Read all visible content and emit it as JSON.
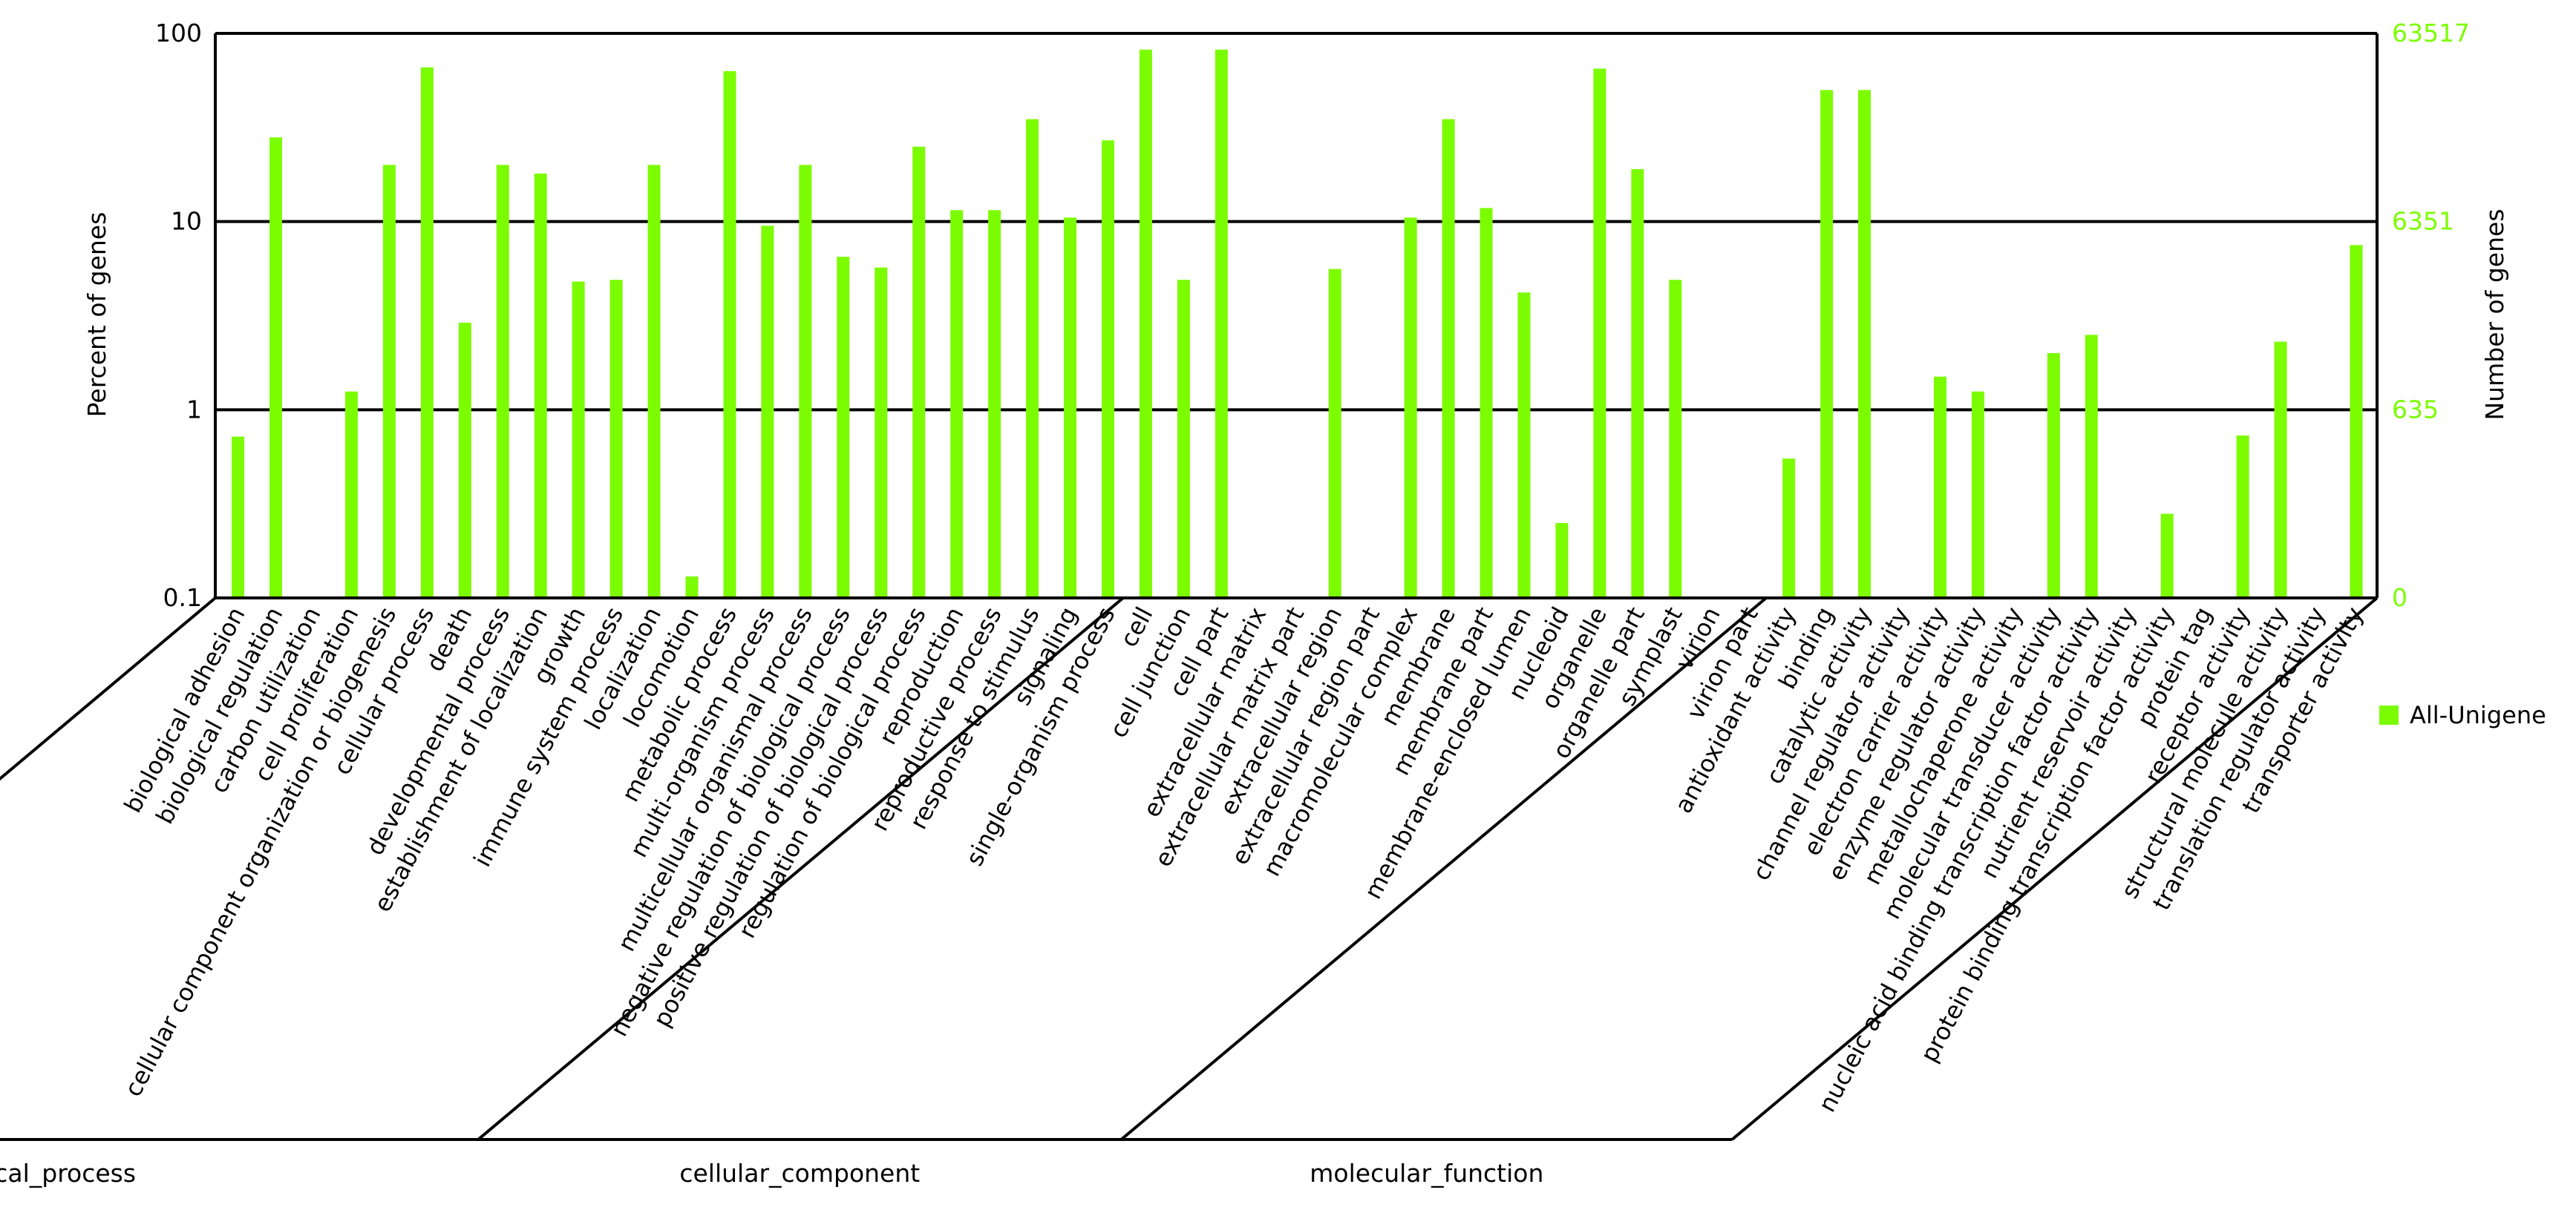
{
  "chart_data": {
    "type": "bar",
    "y_scale": "log",
    "ylabel": "Percent of genes",
    "ylabel_right": "Number of genes",
    "ylim": [
      0.1,
      100
    ],
    "y_ticks": [
      "100",
      "10",
      "1",
      "0.1"
    ],
    "y_ticks_right": [
      "63517",
      "6351",
      "635",
      "0"
    ],
    "grid": true,
    "legend_position": "right",
    "colors": {
      "bar": "#7cfc00",
      "axis": "#000000"
    },
    "series": [
      {
        "name": "All-Unigene",
        "groups": [
          {
            "name": "biological_process",
            "categories": [
              "biological adhesion",
              "biological regulation",
              "carbon utilization",
              "cell proliferation",
              "cellular component organization or biogenesis",
              "cellular process",
              "death",
              "developmental process",
              "establishment of localization",
              "growth",
              "immune system process",
              "localization",
              "locomotion",
              "metabolic process",
              "multi-organism process",
              "multicellular organismal process",
              "negative regulation of biological process",
              "positive regulation of biological process",
              "regulation of biological process",
              "reproduction",
              "reproductive process",
              "response to stimulus",
              "signaling",
              "single-organism process"
            ],
            "values": [
              0.72,
              28,
              null,
              1.25,
              20,
              66,
              2.9,
              20,
              18,
              4.8,
              4.9,
              20,
              0.13,
              63,
              9.5,
              20,
              6.5,
              5.7,
              25,
              11.5,
              11.5,
              35,
              10.5,
              27
            ]
          },
          {
            "name": "cellular_component",
            "categories": [
              "cell",
              "cell junction",
              "cell part",
              "extracellular matrix",
              "extracellular matrix part",
              "extracellular region",
              "extracellular region part",
              "macromolecular complex",
              "membrane",
              "membrane part",
              "membrane-enclosed lumen",
              "nucleoid",
              "organelle",
              "organelle part",
              "symplast",
              "virion",
              "virion part"
            ],
            "values": [
              82,
              4.9,
              82,
              null,
              null,
              5.6,
              null,
              10.5,
              35,
              11.8,
              4.2,
              0.25,
              65,
              19,
              4.9,
              null,
              null
            ]
          },
          {
            "name": "molecular_function",
            "categories": [
              "antioxidant activity",
              "binding",
              "catalytic activity",
              "channel regulator activity",
              "electron carrier activity",
              "enzyme regulator activity",
              "metallochaperone activity",
              "molecular transducer activity",
              "nucleic acid binding transcription factor activity",
              "nutrient reservoir activity",
              "protein binding transcription factor activity",
              "protein tag",
              "receptor activity",
              "structural molecule activity",
              "translation regulator activity",
              "transporter activity"
            ],
            "values": [
              0.55,
              50,
              50,
              null,
              1.5,
              1.25,
              null,
              2.0,
              2.5,
              null,
              0.28,
              null,
              0.73,
              2.3,
              null,
              7.5
            ]
          }
        ]
      }
    ]
  }
}
